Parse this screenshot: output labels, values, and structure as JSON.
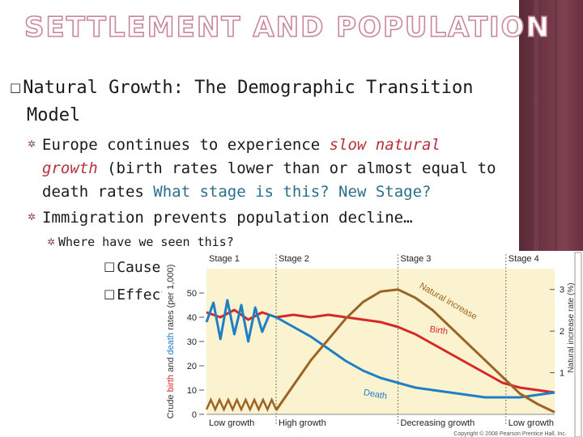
{
  "slide": {
    "title": "SETTLEMENT AND POPULATION",
    "heading_line1": "Natural Growth: The Demographic Transition",
    "heading_line2": "Model",
    "heading_bullet": "□",
    "bullets": [
      {
        "line1_pre": "Europe continues to experience ",
        "line1_highlight": "slow natural",
        "line2_highlight": "growth",
        "line2_rest": " (birth rates lower than or almost equal to",
        "line3_pre": "death rates ",
        "line3_question": "What stage is this? New Stage?"
      },
      {
        "text": "Immigration prevents population decline…"
      },
      {
        "text": "Where have we seen this?"
      }
    ],
    "sub_bullets": [
      "Causes?",
      "Effects?"
    ],
    "sub_bullet_marker": "□",
    "colors": {
      "title_outline": "#c9889a",
      "highlight": "#b5323b",
      "question": "#2a6f8a",
      "sidebar": "#6d3442"
    }
  },
  "chart_data": {
    "type": "line",
    "stages": [
      "Stage 1",
      "Stage 2",
      "Stage 3",
      "Stage 4"
    ],
    "bottom_labels": [
      "Low growth",
      "High growth",
      "Decreasing growth",
      "Low growth"
    ],
    "ylabel_left_parts": [
      "Crude ",
      "birth",
      " and ",
      "death",
      " rates (per 1,000)"
    ],
    "ylabel_right": "Natural increase rate (%)",
    "left_ticks": [
      0,
      10,
      20,
      30,
      40,
      50
    ],
    "right_ticks": [
      1,
      2,
      3
    ],
    "ylim_left": [
      0,
      60
    ],
    "ylim_right": [
      0,
      3.5
    ],
    "x_range": [
      0,
      100
    ],
    "stage_boundaries": [
      20,
      55,
      86
    ],
    "series": [
      {
        "name": "Birth",
        "color": "#d62828",
        "x": [
          0,
          4,
          8,
          12,
          16,
          20,
          25,
          30,
          35,
          40,
          45,
          50,
          55,
          60,
          65,
          70,
          75,
          80,
          85,
          90,
          95,
          100
        ],
        "y": [
          42,
          40,
          43,
          39,
          42,
          40,
          41,
          40,
          41,
          40,
          39,
          38,
          36,
          33,
          29,
          25,
          21,
          17,
          13,
          11,
          10,
          9
        ]
      },
      {
        "name": "Death",
        "color": "#1f7fc4",
        "x": [
          0,
          2,
          4,
          6,
          8,
          10,
          12,
          14,
          16,
          18,
          20,
          25,
          30,
          35,
          40,
          45,
          50,
          55,
          60,
          65,
          70,
          75,
          80,
          85,
          90,
          95,
          100
        ],
        "y": [
          38,
          46,
          31,
          47,
          33,
          45,
          30,
          44,
          34,
          41,
          40,
          36,
          32,
          27,
          22,
          18,
          15,
          13,
          11,
          10,
          9,
          8,
          7,
          7,
          7,
          8,
          9
        ]
      },
      {
        "name": "Natural increase",
        "color": "#9c6424",
        "x": [
          20,
          25,
          30,
          35,
          40,
          45,
          50,
          55,
          60,
          65,
          70,
          75,
          80,
          85,
          90,
          95,
          100
        ],
        "y": [
          0.1,
          0.7,
          1.3,
          1.8,
          2.3,
          2.7,
          2.95,
          3.0,
          2.8,
          2.5,
          2.1,
          1.7,
          1.3,
          0.9,
          0.5,
          0.25,
          0.05
        ]
      }
    ],
    "oscillation_label": "",
    "copyright": "Copyright © 2008 Pearson Prentice Hall, Inc."
  }
}
